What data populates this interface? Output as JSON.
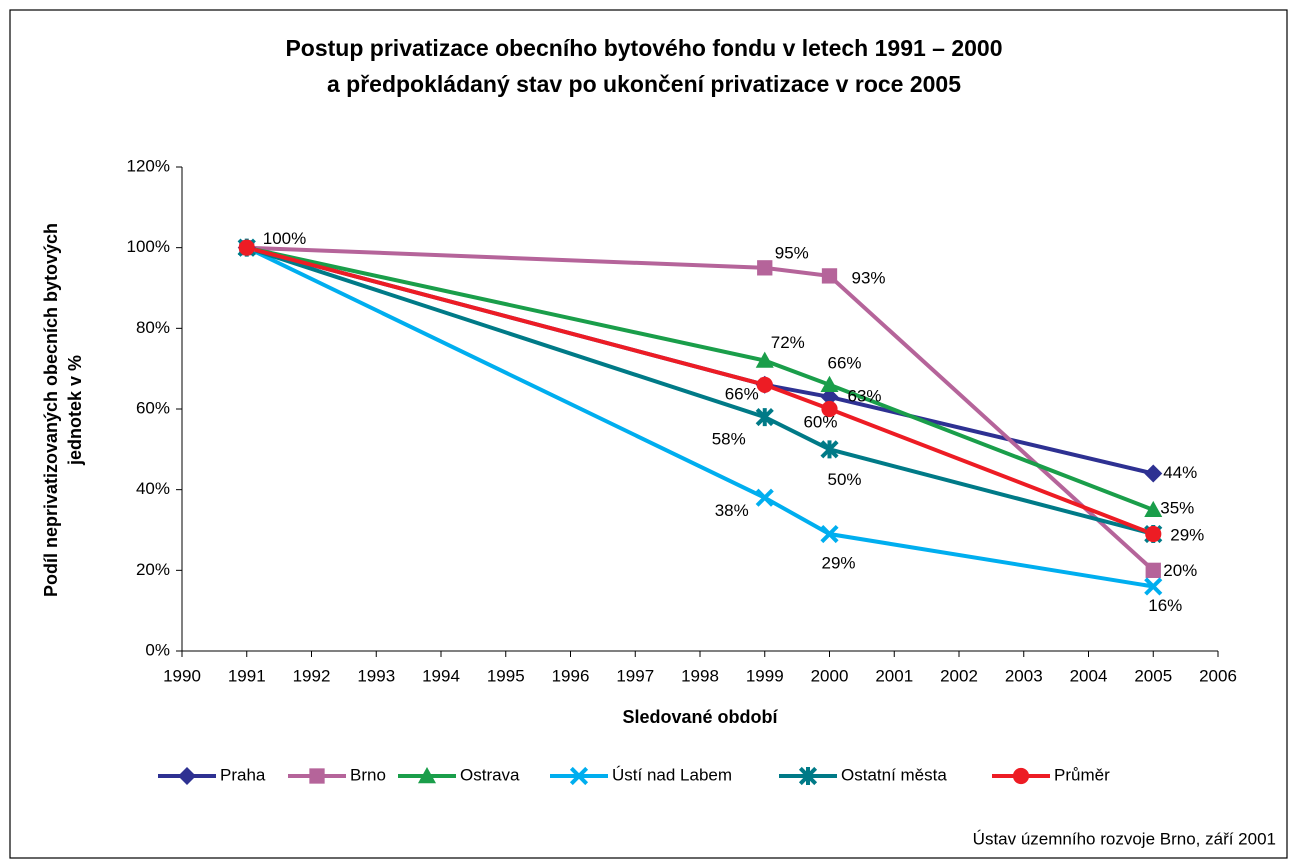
{
  "chart_data": {
    "type": "line",
    "title": [
      "Postup privatizace obecního bytového fondu v letech 1991 – 2000",
      "a předpokládaný stav po ukončení privatizace v roce 2005"
    ],
    "y_label": [
      "Podíl neprivatizovaných obecních bytových",
      "jednotek v %"
    ],
    "x_label": "Sledované období",
    "source": "Ústav územního rozvoje Brno, září 2001",
    "x": [
      1991,
      1999,
      2000,
      2005
    ],
    "xlim": [
      1990,
      2006
    ],
    "xticks": [
      1990,
      1991,
      1992,
      1993,
      1994,
      1995,
      1996,
      1997,
      1998,
      1999,
      2000,
      2001,
      2002,
      2003,
      2004,
      2005,
      2006
    ],
    "ylim": [
      0,
      120
    ],
    "yticks": [
      {
        "value": 0,
        "label": "0%"
      },
      {
        "value": 20,
        "label": "20%"
      },
      {
        "value": 40,
        "label": "40%"
      },
      {
        "value": 60,
        "label": "60%"
      },
      {
        "value": 80,
        "label": "80%"
      },
      {
        "value": 100,
        "label": "100%"
      },
      {
        "value": 120,
        "label": "120%"
      }
    ],
    "legend": "bottom",
    "series": [
      {
        "name": "Praha",
        "color": "#2e3192",
        "marker": "diamond",
        "values": [
          100,
          66,
          63,
          44
        ],
        "value_labels": [
          "100%",
          null,
          "63%",
          "44%"
        ]
      },
      {
        "name": "Brno",
        "color": "#b5649a",
        "marker": "square",
        "values": [
          100,
          95,
          93,
          20
        ],
        "value_labels": [
          null,
          "95%",
          "93%",
          "20%"
        ]
      },
      {
        "name": "Ostrava",
        "color": "#1a9e4a",
        "marker": "triangle",
        "values": [
          100,
          72,
          66,
          35
        ],
        "value_labels": [
          null,
          "72%",
          "66%",
          "35%"
        ]
      },
      {
        "name": "Ústí nad Labem",
        "color": "#00aeef",
        "marker": "x",
        "values": [
          100,
          38,
          29,
          16
        ],
        "value_labels": [
          null,
          "38%",
          "29%",
          "16%"
        ]
      },
      {
        "name": "Ostatní města",
        "color": "#007a87",
        "marker": "star",
        "values": [
          100,
          58,
          50,
          29
        ],
        "value_labels": [
          null,
          "58%",
          "50%",
          null
        ]
      },
      {
        "name": "Průměr",
        "color": "#ed1c24",
        "marker": "circle",
        "values": [
          100,
          66,
          60,
          29
        ],
        "value_labels": [
          null,
          "66%",
          "60%",
          "29%"
        ]
      }
    ]
  }
}
